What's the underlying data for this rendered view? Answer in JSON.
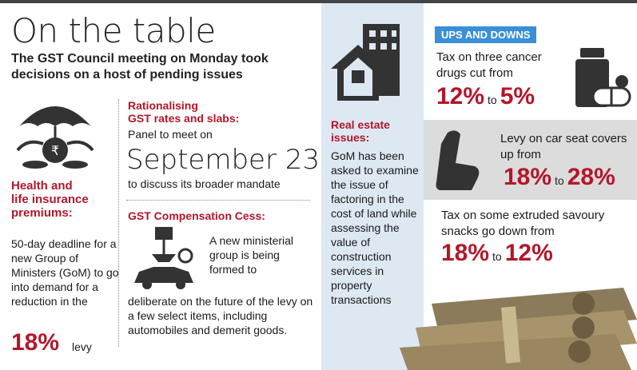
{
  "title": "On the table",
  "subtitle": "The GST Council meeting on Monday took decisions on a host of pending issues",
  "health": {
    "title_line1": "Health and",
    "title_line2": "life insurance",
    "title_line3": "premiums:",
    "body": "50-day deadline for a new Group of Ministers (GoM) to go into demand for a reduction in the",
    "percent": "18%",
    "levy": "levy"
  },
  "rationalising": {
    "title_line1": "Rationalising",
    "title_line2": "GST rates and slabs:",
    "body": "Panel to meet on",
    "date": "September 23",
    "footer": "to discuss its broader mandate"
  },
  "cess": {
    "title": "GST Compensation Cess:",
    "body1": "A new ministerial group is being formed to",
    "body2": "deliberate on the future of the levy on a few select items, including automobiles and demerit goods."
  },
  "real_estate": {
    "title_line1": "Real estate",
    "title_line2": "issues:",
    "body": "GoM has been asked to examine the issue of factoring in the cost of land while assessing the value of construction services in property transactions"
  },
  "ups_downs": {
    "badge": "UPS AND DOWNS",
    "item1": {
      "text": "Tax on three cancer drugs cut from",
      "from": "12%",
      "to_word": "to",
      "to": "5%"
    },
    "item2": {
      "text": "Levy on car seat covers up from",
      "from": "18%",
      "to_word": "to",
      "to": "28%"
    },
    "item3": {
      "text": "Tax on some extruded savoury snacks go down from",
      "from": "18%",
      "to_word": "to",
      "to": "12%"
    }
  },
  "colors": {
    "accent_red": "#b3162a",
    "badge_blue": "#3b8fd6",
    "panel_blue": "#dde8f3",
    "panel_gray": "#dcdcdc"
  },
  "icons": [
    "umbrella-coins-icon",
    "crane-car-icon",
    "building-house-icon",
    "pill-bottle-icon",
    "car-seat-icon",
    "cash-bundles-icon"
  ]
}
